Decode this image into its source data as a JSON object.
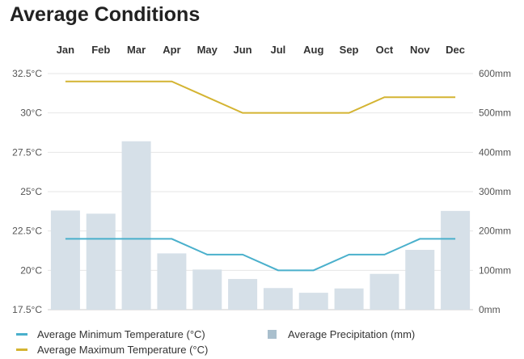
{
  "title": "Average Conditions",
  "chart_data": {
    "type": "bar-line-combo",
    "title": "Average Conditions",
    "categories": [
      "Jan",
      "Feb",
      "Mar",
      "Apr",
      "May",
      "Jun",
      "Jul",
      "Aug",
      "Sep",
      "Oct",
      "Nov",
      "Dec"
    ],
    "left_axis": {
      "ylim": [
        17.5,
        32.5
      ],
      "ticks": [
        "17.5°C",
        "20°C",
        "22.5°C",
        "25°C",
        "27.5°C",
        "30°C",
        "32.5°C"
      ]
    },
    "right_axis": {
      "ylim": [
        0,
        600
      ],
      "ticks": [
        "0mm",
        "100mm",
        "200mm",
        "300mm",
        "400mm",
        "500mm",
        "600mm"
      ]
    },
    "series": [
      {
        "name": "Average Minimum Temperature (°C)",
        "kind": "line",
        "axis": "left",
        "color": "#4ab0cc",
        "values": [
          22,
          22,
          22,
          22,
          21,
          21,
          20,
          20,
          21,
          21,
          22,
          22
        ]
      },
      {
        "name": "Average Maximum Temperature (°C)",
        "kind": "line",
        "axis": "left",
        "color": "#d4b432",
        "values": [
          32,
          32,
          32,
          32,
          31,
          30,
          30,
          30,
          30,
          31,
          31,
          31
        ]
      },
      {
        "name": "Average Precipitation (mm)",
        "kind": "bar",
        "axis": "right",
        "color": "#d6e0e8",
        "values": [
          252,
          244,
          428,
          143,
          102,
          78,
          55,
          43,
          54,
          91,
          152,
          251
        ]
      }
    ],
    "grid": true,
    "legend_position": "bottom"
  }
}
